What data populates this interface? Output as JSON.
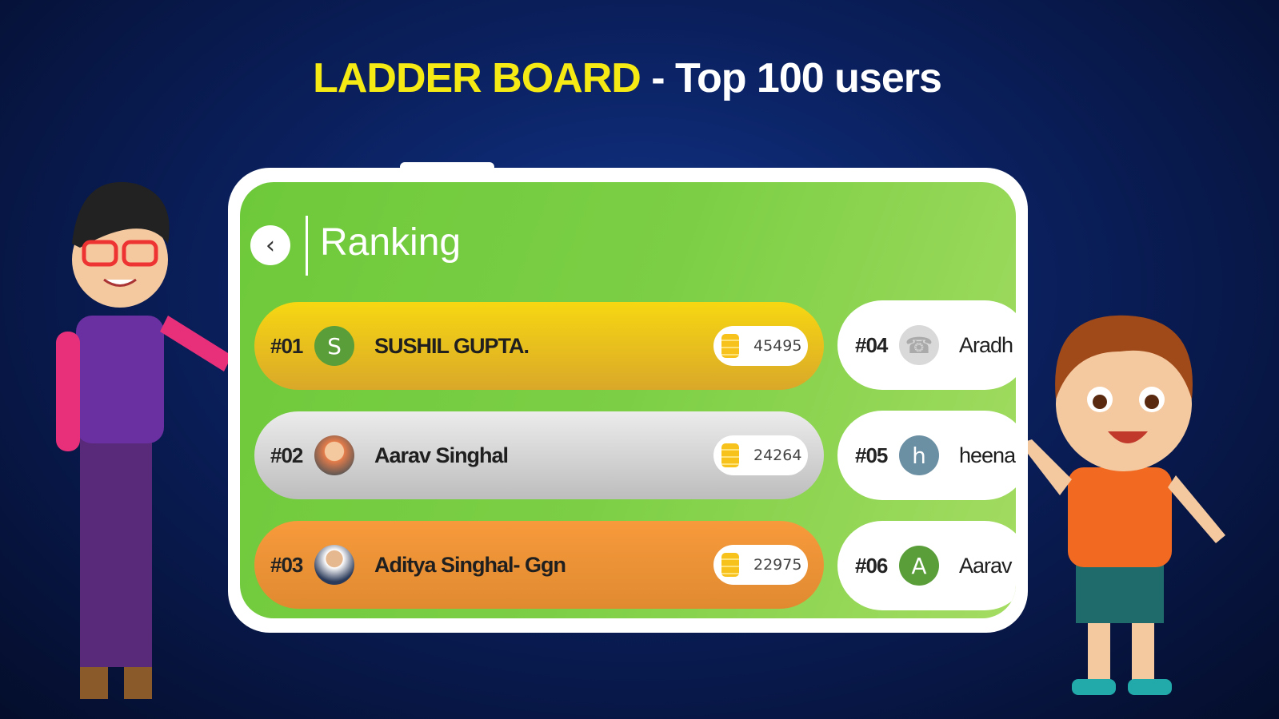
{
  "banner": {
    "title_highlight": "LADDER BOARD",
    "title_rest": " - Top 100 users"
  },
  "screen": {
    "title": "Ranking",
    "back_icon": "chevron-left-icon"
  },
  "colors": {
    "gold": "#f2c81a",
    "silver": "#d0d0d0",
    "bronze": "#f0923a",
    "green": "#6ec93a"
  },
  "top_ranks": [
    {
      "rank": "#01",
      "initial": "S",
      "avatar_color": "#5a9e3a",
      "name": "SUSHIL GUPTA.",
      "points": "45495"
    },
    {
      "rank": "#02",
      "initial": "",
      "avatar_color": "#e57c4a",
      "name": "Aarav Singhal",
      "points": "24264"
    },
    {
      "rank": "#03",
      "initial": "",
      "avatar_color": "#3a4a6a",
      "name": "Aditya Singhal- Ggn",
      "points": "22975"
    }
  ],
  "other_ranks": [
    {
      "rank": "#04",
      "initial": "",
      "avatar_color": "#d9d9d9",
      "name": "Aradh"
    },
    {
      "rank": "#05",
      "initial": "h",
      "avatar_color": "#6b8fa3",
      "name": "heena"
    },
    {
      "rank": "#06",
      "initial": "A",
      "avatar_color": "#5a9e3a",
      "name": "Aarav"
    }
  ]
}
